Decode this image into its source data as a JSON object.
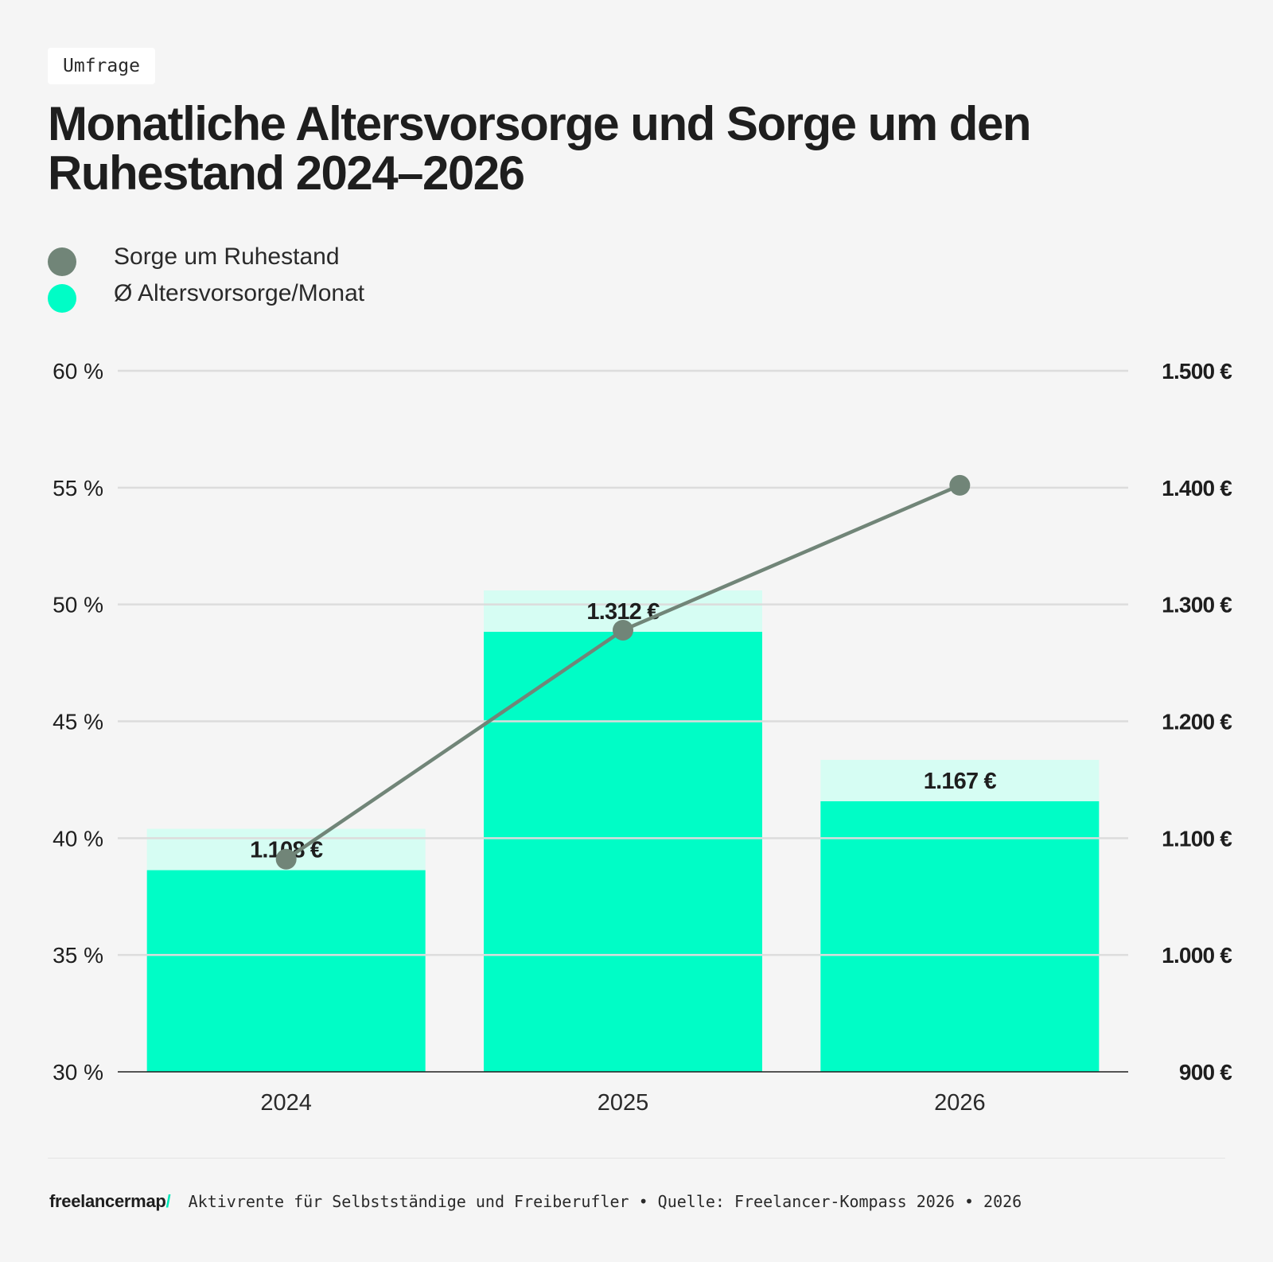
{
  "tag": "Umfrage",
  "title": "Monatliche Altersvorsorge und Sorge um den Ruhestand 2024–2026",
  "legend": [
    {
      "label": "Sorge um Ruhestand",
      "color": "#718578"
    },
    {
      "label": "Ø Altersvorsorge/Monat",
      "color": "#00fdc6"
    }
  ],
  "footer": {
    "brand": "freelancermap",
    "brand_mark": "/",
    "text": "Aktivrente für Selbstständige und Freiberufler • Quelle: Freelancer-Kompass 2026 • 2026"
  },
  "chart_data": {
    "type": "bar+line",
    "categories": [
      "2024",
      "2025",
      "2026"
    ],
    "series": [
      {
        "name": "Ø Altersvorsorge/Monat",
        "type": "bar",
        "axis": "right",
        "values": [
          1108,
          1312,
          1167
        ],
        "labels": [
          "1.108 €",
          "1.312 €",
          "1.167 €"
        ],
        "color": "#00fdc6",
        "label_bg": "#d6fdf3"
      },
      {
        "name": "Sorge um Ruhestand",
        "type": "line",
        "axis": "left",
        "values": [
          39.1,
          48.9,
          55.1
        ],
        "color": "#718578"
      }
    ],
    "left_axis": {
      "ylim": [
        30,
        60
      ],
      "ticks": [
        60,
        55,
        50,
        45,
        40,
        35,
        30
      ],
      "tick_labels": [
        "60 %",
        "55 %",
        "50 %",
        "45 %",
        "40 %",
        "35 %",
        "30 %"
      ]
    },
    "right_axis": {
      "ylim": [
        900,
        1500
      ],
      "ticks": [
        1500,
        1400,
        1300,
        1200,
        1100,
        1000,
        900
      ],
      "tick_labels": [
        "1.500 €",
        "1.400 €",
        "1.300 €",
        "1.200 €",
        "1.100 €",
        "1.000 €",
        "900 €"
      ]
    },
    "grid": true,
    "legend_position": "top-left"
  }
}
